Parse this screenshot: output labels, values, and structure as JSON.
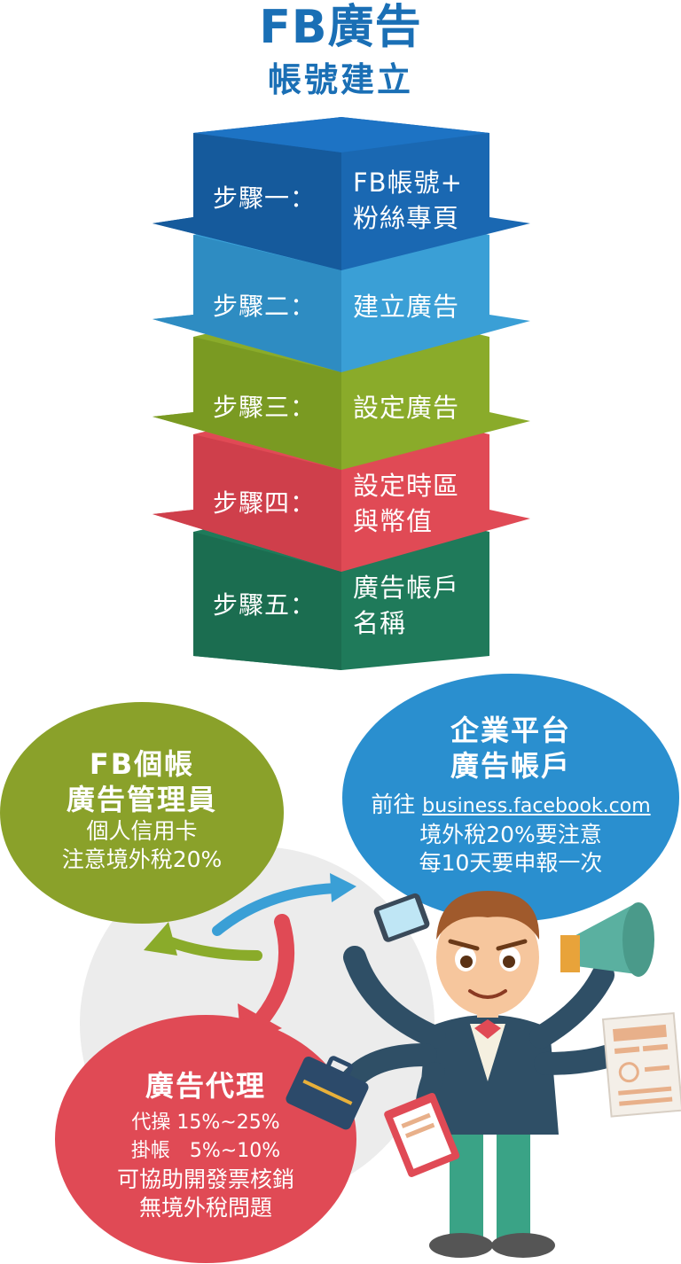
{
  "title": {
    "main": "FB廣告",
    "sub": "帳號建立"
  },
  "steps": [
    {
      "label": "步驟一：",
      "lines": [
        "FB帳號+",
        "粉絲專頁"
      ],
      "color": "#1a68b2"
    },
    {
      "label": "步驟二：",
      "lines": [
        "建立廣告"
      ],
      "color": "#3a9fd6"
    },
    {
      "label": "步驟三：",
      "lines": [
        "設定廣告"
      ],
      "color": "#8aab2a"
    },
    {
      "label": "步驟四：",
      "lines": [
        "設定時區",
        "與幣值"
      ],
      "color": "#e04a55"
    },
    {
      "label": "步驟五：",
      "lines": [
        "廣告帳戶",
        "名稱"
      ],
      "color": "#1f7a5a"
    }
  ],
  "bubbles": {
    "personal": {
      "title": [
        "FB個帳",
        "廣告管理員"
      ],
      "body": [
        "個人信用卡",
        "注意境外稅20%"
      ],
      "color": "#8aa12a"
    },
    "business": {
      "title": [
        "企業平台",
        "廣告帳戶"
      ],
      "prefix": "前往 ",
      "link": "business.facebook.com",
      "body": [
        "境外稅20%要注意",
        "每10天要申報一次"
      ],
      "color": "#2a8fcf"
    },
    "agency": {
      "title": "廣告代理",
      "rows": [
        "代操 15%~25%",
        "掛帳　5%~10%"
      ],
      "body": [
        "可協助開發票核銷",
        "無境外稅問題"
      ],
      "color": "#e04a55"
    }
  },
  "icons": [
    "businessman-illustration",
    "megaphone-icon",
    "smartphone-icon",
    "briefcase-icon",
    "document-icon",
    "cycle-arrows-icon"
  ]
}
